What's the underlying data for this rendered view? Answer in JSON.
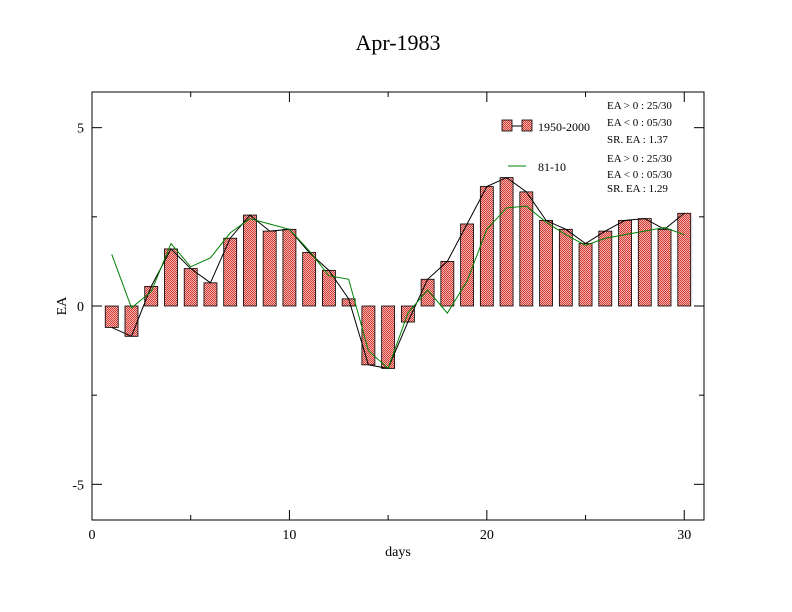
{
  "chart_data": {
    "type": "bar",
    "title": "Apr-1983",
    "xlabel": "days",
    "ylabel": "EA",
    "xlim": [
      0,
      31
    ],
    "ylim": [
      -6,
      6
    ],
    "x_ticks": [
      0,
      10,
      20,
      30
    ],
    "y_ticks": [
      -5,
      0,
      5
    ],
    "x_tick_labels": [
      "0",
      "10",
      "20",
      "30"
    ],
    "y_tick_labels": [
      "-5",
      "0",
      "5"
    ],
    "grid": false,
    "legend_position": "top-right",
    "x": [
      1,
      2,
      3,
      4,
      5,
      6,
      7,
      8,
      9,
      10,
      11,
      12,
      13,
      14,
      15,
      16,
      17,
      18,
      19,
      20,
      21,
      22,
      23,
      24,
      25,
      26,
      27,
      28,
      29,
      30
    ],
    "series": [
      {
        "name": "1950-2000",
        "render": "bar+line",
        "bar_color": "#e8807f",
        "line_color": "#000000",
        "values": [
          -0.6,
          -0.85,
          0.55,
          1.6,
          1.05,
          0.65,
          1.9,
          2.55,
          2.1,
          2.15,
          1.5,
          1.0,
          0.2,
          -1.65,
          -1.75,
          -0.45,
          0.75,
          1.25,
          2.3,
          3.35,
          3.6,
          3.2,
          2.4,
          2.15,
          1.75,
          2.1,
          2.4,
          2.45,
          2.15,
          2.6
        ]
      },
      {
        "name": "81-10",
        "render": "line",
        "line_color": "#008000",
        "values": [
          1.45,
          -0.05,
          0.4,
          1.75,
          1.1,
          1.35,
          2.05,
          2.45,
          2.3,
          2.15,
          1.55,
          0.85,
          0.75,
          -1.25,
          -1.75,
          -0.2,
          0.45,
          -0.2,
          0.7,
          2.15,
          2.75,
          2.8,
          2.35,
          2.0,
          1.7,
          1.9,
          2.0,
          2.1,
          2.2,
          2.0
        ]
      }
    ],
    "annotations": {
      "series1_stats": [
        "EA > 0 : 25/30",
        "EA < 0 : 05/30",
        "SR. EA :  1.37"
      ],
      "series2_stats": [
        "EA > 0 : 25/30",
        "EA < 0 : 05/30",
        "SR. EA :  1.29"
      ]
    }
  }
}
